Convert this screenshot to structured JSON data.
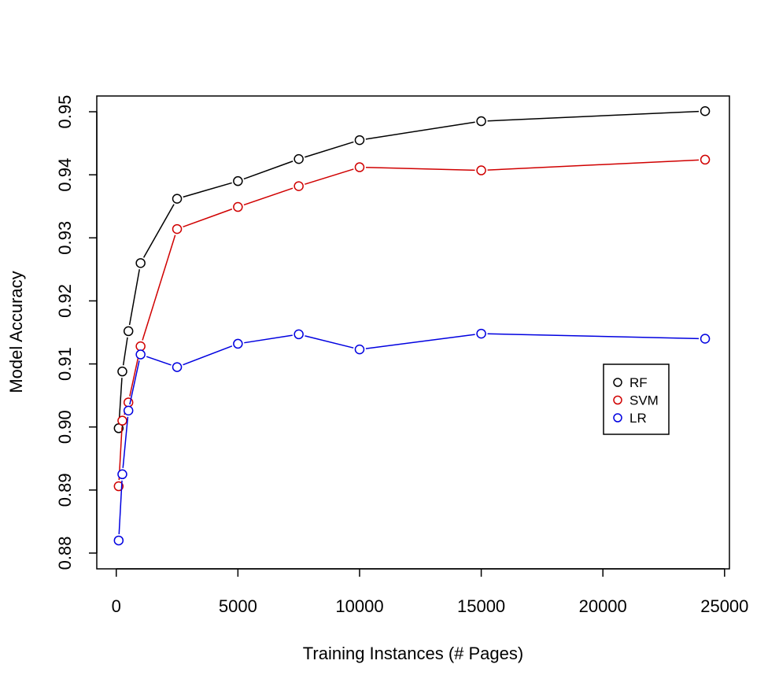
{
  "chart_data": {
    "type": "line",
    "title": "",
    "xlabel": "Training Instances (# Pages)",
    "ylabel": "Model Accuracy",
    "xlim": [
      -800,
      25200
    ],
    "ylim": [
      0.8775,
      0.9525
    ],
    "xticks": [
      0,
      5000,
      10000,
      15000,
      20000,
      25000
    ],
    "xtick_labels": [
      "0",
      "5000",
      "10000",
      "15000",
      "20000",
      "25000"
    ],
    "yticks": [
      0.88,
      0.89,
      0.9,
      0.91,
      0.92,
      0.93,
      0.94,
      0.95
    ],
    "ytick_labels": [
      "0.88",
      "0.89",
      "0.90",
      "0.91",
      "0.92",
      "0.93",
      "0.94",
      "0.95"
    ],
    "grid": false,
    "legend_position": "right",
    "marker": "open-circle",
    "x": [
      100,
      250,
      500,
      1000,
      2500,
      5000,
      7500,
      10000,
      15000,
      24200
    ],
    "series": [
      {
        "name": "RF",
        "color": "#000000",
        "values": [
          0.8998,
          0.9088,
          0.9152,
          0.926,
          0.9362,
          0.939,
          0.9425,
          0.9455,
          0.9485,
          0.9501
        ]
      },
      {
        "name": "SVM",
        "color": "#d00000",
        "values": [
          0.8906,
          0.901,
          0.9039,
          0.9128,
          0.9314,
          0.9349,
          0.9382,
          0.9412,
          0.9407,
          0.9424
        ]
      },
      {
        "name": "LR",
        "color": "#0000e0",
        "values": [
          0.882,
          0.8925,
          0.9026,
          0.9115,
          0.9095,
          0.9132,
          0.9147,
          0.9123,
          0.9148,
          0.914
        ]
      }
    ]
  }
}
